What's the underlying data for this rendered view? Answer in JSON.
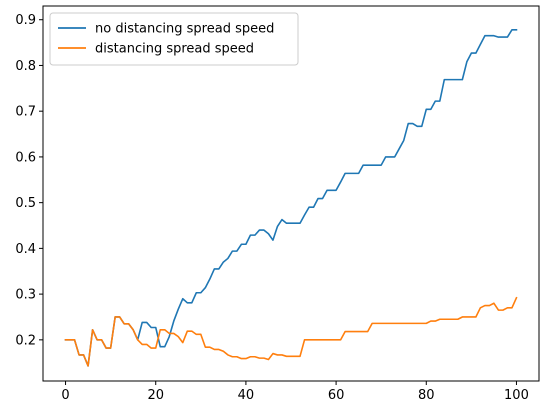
{
  "chart_data": {
    "type": "line",
    "title": "",
    "xlabel": "",
    "ylabel": "",
    "xlim": [
      -5,
      105
    ],
    "ylim": [
      0.11,
      0.93
    ],
    "xticks": [
      0,
      20,
      40,
      60,
      80,
      100
    ],
    "yticks": [
      0.2,
      0.3,
      0.4,
      0.5,
      0.6,
      0.7,
      0.8,
      0.9
    ],
    "grid": false,
    "legend_position": "upper-left",
    "series": [
      {
        "name": "no distancing spread speed",
        "color": "#1f77b4",
        "points": [
          [
            0,
            0.2
          ],
          [
            1,
            0.2
          ],
          [
            2,
            0.2
          ],
          [
            3,
            0.167
          ],
          [
            4,
            0.167
          ],
          [
            5,
            0.143
          ],
          [
            6,
            0.222
          ],
          [
            7,
            0.2
          ],
          [
            8,
            0.2
          ],
          [
            9,
            0.182
          ],
          [
            10,
            0.182
          ],
          [
            11,
            0.25
          ],
          [
            12,
            0.25
          ],
          [
            13,
            0.235
          ],
          [
            14,
            0.235
          ],
          [
            15,
            0.222
          ],
          [
            16,
            0.2
          ],
          [
            17,
            0.238
          ],
          [
            18,
            0.238
          ],
          [
            19,
            0.227
          ],
          [
            20,
            0.227
          ],
          [
            21,
            0.185
          ],
          [
            22,
            0.185
          ],
          [
            23,
            0.207
          ],
          [
            24,
            0.241
          ],
          [
            25,
            0.267
          ],
          [
            26,
            0.29
          ],
          [
            27,
            0.281
          ],
          [
            28,
            0.281
          ],
          [
            29,
            0.303
          ],
          [
            30,
            0.303
          ],
          [
            31,
            0.314
          ],
          [
            32,
            0.333
          ],
          [
            33,
            0.355
          ],
          [
            34,
            0.355
          ],
          [
            35,
            0.37
          ],
          [
            36,
            0.378
          ],
          [
            37,
            0.394
          ],
          [
            38,
            0.394
          ],
          [
            39,
            0.409
          ],
          [
            40,
            0.409
          ],
          [
            41,
            0.429
          ],
          [
            42,
            0.429
          ],
          [
            43,
            0.44
          ],
          [
            44,
            0.44
          ],
          [
            45,
            0.432
          ],
          [
            46,
            0.418
          ],
          [
            47,
            0.448
          ],
          [
            48,
            0.463
          ],
          [
            49,
            0.455
          ],
          [
            50,
            0.455
          ],
          [
            51,
            0.455
          ],
          [
            52,
            0.455
          ],
          [
            53,
            0.473
          ],
          [
            54,
            0.49
          ],
          [
            55,
            0.49
          ],
          [
            56,
            0.509
          ],
          [
            57,
            0.509
          ],
          [
            58,
            0.527
          ],
          [
            59,
            0.527
          ],
          [
            60,
            0.527
          ],
          [
            61,
            0.545
          ],
          [
            62,
            0.564
          ],
          [
            63,
            0.564
          ],
          [
            64,
            0.564
          ],
          [
            65,
            0.564
          ],
          [
            66,
            0.582
          ],
          [
            67,
            0.582
          ],
          [
            68,
            0.582
          ],
          [
            69,
            0.582
          ],
          [
            70,
            0.582
          ],
          [
            71,
            0.6
          ],
          [
            72,
            0.6
          ],
          [
            73,
            0.6
          ],
          [
            74,
            0.618
          ],
          [
            75,
            0.636
          ],
          [
            76,
            0.673
          ],
          [
            77,
            0.673
          ],
          [
            78,
            0.667
          ],
          [
            79,
            0.667
          ],
          [
            80,
            0.704
          ],
          [
            81,
            0.704
          ],
          [
            82,
            0.722
          ],
          [
            83,
            0.722
          ],
          [
            84,
            0.769
          ],
          [
            85,
            0.769
          ],
          [
            86,
            0.769
          ],
          [
            87,
            0.769
          ],
          [
            88,
            0.769
          ],
          [
            89,
            0.808
          ],
          [
            90,
            0.827
          ],
          [
            91,
            0.827
          ],
          [
            92,
            0.846
          ],
          [
            93,
            0.865
          ],
          [
            94,
            0.865
          ],
          [
            95,
            0.865
          ],
          [
            96,
            0.862
          ],
          [
            97,
            0.862
          ],
          [
            98,
            0.862
          ],
          [
            99,
            0.878
          ],
          [
            100,
            0.878
          ]
        ]
      },
      {
        "name": "distancing spread speed",
        "color": "#ff7f0e",
        "points": [
          [
            0,
            0.2
          ],
          [
            1,
            0.2
          ],
          [
            2,
            0.2
          ],
          [
            3,
            0.167
          ],
          [
            4,
            0.167
          ],
          [
            5,
            0.143
          ],
          [
            6,
            0.222
          ],
          [
            7,
            0.2
          ],
          [
            8,
            0.2
          ],
          [
            9,
            0.182
          ],
          [
            10,
            0.182
          ],
          [
            11,
            0.25
          ],
          [
            12,
            0.25
          ],
          [
            13,
            0.235
          ],
          [
            14,
            0.235
          ],
          [
            15,
            0.222
          ],
          [
            16,
            0.2
          ],
          [
            17,
            0.19
          ],
          [
            18,
            0.19
          ],
          [
            19,
            0.182
          ],
          [
            20,
            0.182
          ],
          [
            21,
            0.222
          ],
          [
            22,
            0.222
          ],
          [
            23,
            0.214
          ],
          [
            24,
            0.214
          ],
          [
            25,
            0.207
          ],
          [
            26,
            0.194
          ],
          [
            27,
            0.219
          ],
          [
            28,
            0.219
          ],
          [
            29,
            0.212
          ],
          [
            30,
            0.212
          ],
          [
            31,
            0.184
          ],
          [
            32,
            0.184
          ],
          [
            33,
            0.179
          ],
          [
            34,
            0.179
          ],
          [
            35,
            0.175
          ],
          [
            36,
            0.167
          ],
          [
            37,
            0.163
          ],
          [
            38,
            0.163
          ],
          [
            39,
            0.159
          ],
          [
            40,
            0.159
          ],
          [
            41,
            0.163
          ],
          [
            42,
            0.163
          ],
          [
            43,
            0.16
          ],
          [
            44,
            0.16
          ],
          [
            45,
            0.157
          ],
          [
            46,
            0.17
          ],
          [
            47,
            0.167
          ],
          [
            48,
            0.167
          ],
          [
            49,
            0.164
          ],
          [
            50,
            0.164
          ],
          [
            51,
            0.164
          ],
          [
            52,
            0.164
          ],
          [
            53,
            0.2
          ],
          [
            54,
            0.2
          ],
          [
            55,
            0.2
          ],
          [
            56,
            0.2
          ],
          [
            57,
            0.2
          ],
          [
            58,
            0.2
          ],
          [
            59,
            0.2
          ],
          [
            60,
            0.2
          ],
          [
            61,
            0.2
          ],
          [
            62,
            0.218
          ],
          [
            63,
            0.218
          ],
          [
            64,
            0.218
          ],
          [
            65,
            0.218
          ],
          [
            66,
            0.218
          ],
          [
            67,
            0.218
          ],
          [
            68,
            0.236
          ],
          [
            69,
            0.236
          ],
          [
            70,
            0.236
          ],
          [
            71,
            0.236
          ],
          [
            72,
            0.236
          ],
          [
            73,
            0.236
          ],
          [
            74,
            0.236
          ],
          [
            75,
            0.236
          ],
          [
            76,
            0.236
          ],
          [
            77,
            0.236
          ],
          [
            78,
            0.236
          ],
          [
            79,
            0.236
          ],
          [
            80,
            0.236
          ],
          [
            81,
            0.241
          ],
          [
            82,
            0.241
          ],
          [
            83,
            0.245
          ],
          [
            84,
            0.245
          ],
          [
            85,
            0.245
          ],
          [
            86,
            0.245
          ],
          [
            87,
            0.245
          ],
          [
            88,
            0.25
          ],
          [
            89,
            0.25
          ],
          [
            90,
            0.25
          ],
          [
            91,
            0.25
          ],
          [
            92,
            0.27
          ],
          [
            93,
            0.275
          ],
          [
            94,
            0.275
          ],
          [
            95,
            0.28
          ],
          [
            96,
            0.265
          ],
          [
            97,
            0.265
          ],
          [
            98,
            0.27
          ],
          [
            99,
            0.27
          ],
          [
            100,
            0.292
          ]
        ]
      }
    ]
  }
}
